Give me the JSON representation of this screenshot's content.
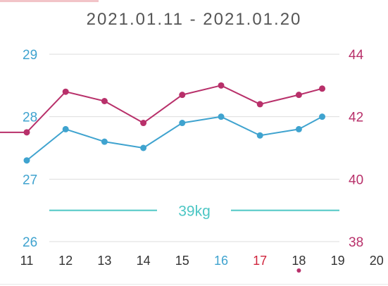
{
  "header": {
    "date_range": "2021.01.11 - 2021.01.20"
  },
  "colors": {
    "blue": "#3fa3cf",
    "magenta": "#b8306a",
    "teal": "#4cc6c4",
    "red_tick": "#d0243c",
    "grid": "#dddddd",
    "text": "#333333",
    "tab_indicator": "#f2c4c8"
  },
  "chart_data": {
    "type": "line",
    "title": "2021.01.11 - 2021.01.20",
    "x_ticks": [
      "11",
      "12",
      "13",
      "14",
      "15",
      "16",
      "17",
      "18",
      "19",
      "20"
    ],
    "highlight_x": {
      "16": "blue",
      "17": "red"
    },
    "selected_marker_x": "18",
    "left_axis": {
      "range": [
        26,
        29
      ],
      "ticks": [
        "26",
        "27",
        "28",
        "29"
      ]
    },
    "right_axis": {
      "range": [
        38,
        44
      ],
      "ticks": [
        "38",
        "40",
        "42",
        "44"
      ]
    },
    "series": [
      {
        "axis": "left",
        "color": "blue",
        "x": [
          11,
          12,
          13,
          14,
          15,
          16,
          17,
          18,
          18.6
        ],
        "values": [
          27.3,
          27.8,
          27.6,
          27.5,
          27.9,
          28.0,
          27.7,
          27.8,
          28.0
        ]
      },
      {
        "axis": "right",
        "color": "magenta",
        "x": [
          11,
          12,
          13,
          14,
          15,
          16,
          17,
          18,
          18.6
        ],
        "values": [
          41.5,
          42.8,
          42.5,
          41.8,
          42.7,
          43.0,
          42.4,
          42.7,
          42.9
        ],
        "extends_left": true
      }
    ],
    "target": {
      "label": "39kg",
      "value": 39,
      "axis": "right",
      "color": "teal"
    },
    "grid": true,
    "legend": "none"
  }
}
